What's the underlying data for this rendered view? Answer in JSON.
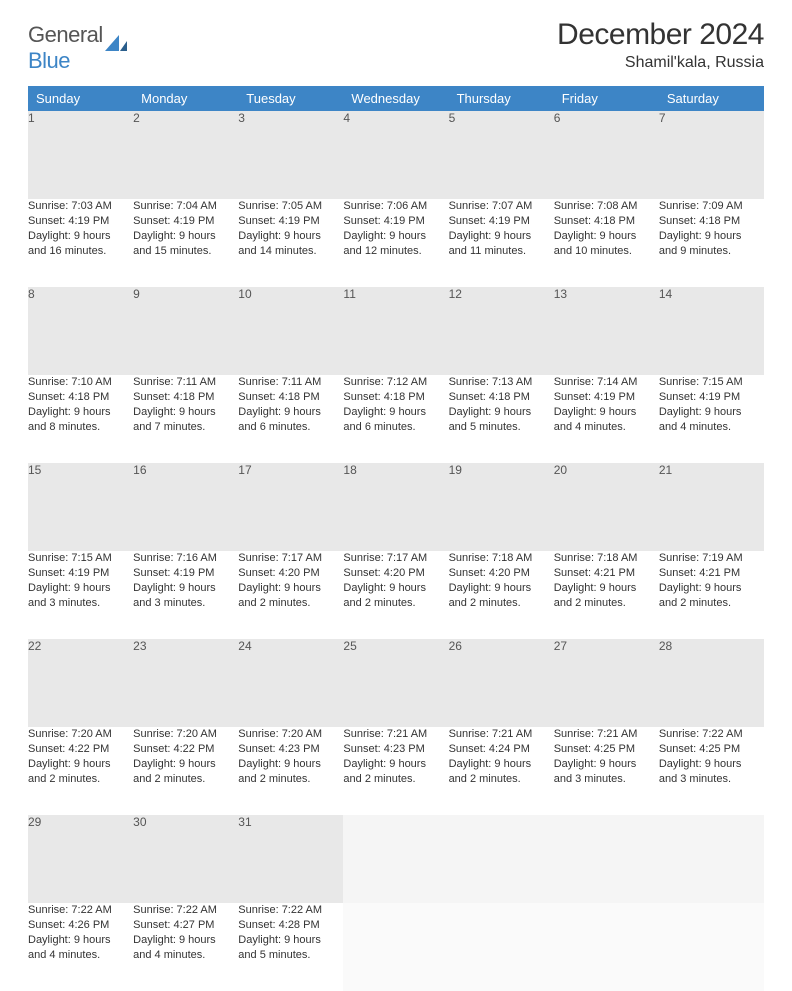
{
  "brand": {
    "name_general": "General",
    "name_blue": "Blue"
  },
  "title": "December 2024",
  "location": "Shamil'kala, Russia",
  "colors": {
    "header_bg": "#3d85c6",
    "header_text": "#ffffff",
    "daynum_bg": "#e8e8e8",
    "daynum_border_top": "#3d85c6",
    "body_text": "#333333"
  },
  "dayNames": [
    "Sunday",
    "Monday",
    "Tuesday",
    "Wednesday",
    "Thursday",
    "Friday",
    "Saturday"
  ],
  "weeks": [
    [
      {
        "num": "1",
        "sunrise": "Sunrise: 7:03 AM",
        "sunset": "Sunset: 4:19 PM",
        "daylight1": "Daylight: 9 hours",
        "daylight2": "and 16 minutes."
      },
      {
        "num": "2",
        "sunrise": "Sunrise: 7:04 AM",
        "sunset": "Sunset: 4:19 PM",
        "daylight1": "Daylight: 9 hours",
        "daylight2": "and 15 minutes."
      },
      {
        "num": "3",
        "sunrise": "Sunrise: 7:05 AM",
        "sunset": "Sunset: 4:19 PM",
        "daylight1": "Daylight: 9 hours",
        "daylight2": "and 14 minutes."
      },
      {
        "num": "4",
        "sunrise": "Sunrise: 7:06 AM",
        "sunset": "Sunset: 4:19 PM",
        "daylight1": "Daylight: 9 hours",
        "daylight2": "and 12 minutes."
      },
      {
        "num": "5",
        "sunrise": "Sunrise: 7:07 AM",
        "sunset": "Sunset: 4:19 PM",
        "daylight1": "Daylight: 9 hours",
        "daylight2": "and 11 minutes."
      },
      {
        "num": "6",
        "sunrise": "Sunrise: 7:08 AM",
        "sunset": "Sunset: 4:18 PM",
        "daylight1": "Daylight: 9 hours",
        "daylight2": "and 10 minutes."
      },
      {
        "num": "7",
        "sunrise": "Sunrise: 7:09 AM",
        "sunset": "Sunset: 4:18 PM",
        "daylight1": "Daylight: 9 hours",
        "daylight2": "and 9 minutes."
      }
    ],
    [
      {
        "num": "8",
        "sunrise": "Sunrise: 7:10 AM",
        "sunset": "Sunset: 4:18 PM",
        "daylight1": "Daylight: 9 hours",
        "daylight2": "and 8 minutes."
      },
      {
        "num": "9",
        "sunrise": "Sunrise: 7:11 AM",
        "sunset": "Sunset: 4:18 PM",
        "daylight1": "Daylight: 9 hours",
        "daylight2": "and 7 minutes."
      },
      {
        "num": "10",
        "sunrise": "Sunrise: 7:11 AM",
        "sunset": "Sunset: 4:18 PM",
        "daylight1": "Daylight: 9 hours",
        "daylight2": "and 6 minutes."
      },
      {
        "num": "11",
        "sunrise": "Sunrise: 7:12 AM",
        "sunset": "Sunset: 4:18 PM",
        "daylight1": "Daylight: 9 hours",
        "daylight2": "and 6 minutes."
      },
      {
        "num": "12",
        "sunrise": "Sunrise: 7:13 AM",
        "sunset": "Sunset: 4:18 PM",
        "daylight1": "Daylight: 9 hours",
        "daylight2": "and 5 minutes."
      },
      {
        "num": "13",
        "sunrise": "Sunrise: 7:14 AM",
        "sunset": "Sunset: 4:19 PM",
        "daylight1": "Daylight: 9 hours",
        "daylight2": "and 4 minutes."
      },
      {
        "num": "14",
        "sunrise": "Sunrise: 7:15 AM",
        "sunset": "Sunset: 4:19 PM",
        "daylight1": "Daylight: 9 hours",
        "daylight2": "and 4 minutes."
      }
    ],
    [
      {
        "num": "15",
        "sunrise": "Sunrise: 7:15 AM",
        "sunset": "Sunset: 4:19 PM",
        "daylight1": "Daylight: 9 hours",
        "daylight2": "and 3 minutes."
      },
      {
        "num": "16",
        "sunrise": "Sunrise: 7:16 AM",
        "sunset": "Sunset: 4:19 PM",
        "daylight1": "Daylight: 9 hours",
        "daylight2": "and 3 minutes."
      },
      {
        "num": "17",
        "sunrise": "Sunrise: 7:17 AM",
        "sunset": "Sunset: 4:20 PM",
        "daylight1": "Daylight: 9 hours",
        "daylight2": "and 2 minutes."
      },
      {
        "num": "18",
        "sunrise": "Sunrise: 7:17 AM",
        "sunset": "Sunset: 4:20 PM",
        "daylight1": "Daylight: 9 hours",
        "daylight2": "and 2 minutes."
      },
      {
        "num": "19",
        "sunrise": "Sunrise: 7:18 AM",
        "sunset": "Sunset: 4:20 PM",
        "daylight1": "Daylight: 9 hours",
        "daylight2": "and 2 minutes."
      },
      {
        "num": "20",
        "sunrise": "Sunrise: 7:18 AM",
        "sunset": "Sunset: 4:21 PM",
        "daylight1": "Daylight: 9 hours",
        "daylight2": "and 2 minutes."
      },
      {
        "num": "21",
        "sunrise": "Sunrise: 7:19 AM",
        "sunset": "Sunset: 4:21 PM",
        "daylight1": "Daylight: 9 hours",
        "daylight2": "and 2 minutes."
      }
    ],
    [
      {
        "num": "22",
        "sunrise": "Sunrise: 7:20 AM",
        "sunset": "Sunset: 4:22 PM",
        "daylight1": "Daylight: 9 hours",
        "daylight2": "and 2 minutes."
      },
      {
        "num": "23",
        "sunrise": "Sunrise: 7:20 AM",
        "sunset": "Sunset: 4:22 PM",
        "daylight1": "Daylight: 9 hours",
        "daylight2": "and 2 minutes."
      },
      {
        "num": "24",
        "sunrise": "Sunrise: 7:20 AM",
        "sunset": "Sunset: 4:23 PM",
        "daylight1": "Daylight: 9 hours",
        "daylight2": "and 2 minutes."
      },
      {
        "num": "25",
        "sunrise": "Sunrise: 7:21 AM",
        "sunset": "Sunset: 4:23 PM",
        "daylight1": "Daylight: 9 hours",
        "daylight2": "and 2 minutes."
      },
      {
        "num": "26",
        "sunrise": "Sunrise: 7:21 AM",
        "sunset": "Sunset: 4:24 PM",
        "daylight1": "Daylight: 9 hours",
        "daylight2": "and 2 minutes."
      },
      {
        "num": "27",
        "sunrise": "Sunrise: 7:21 AM",
        "sunset": "Sunset: 4:25 PM",
        "daylight1": "Daylight: 9 hours",
        "daylight2": "and 3 minutes."
      },
      {
        "num": "28",
        "sunrise": "Sunrise: 7:22 AM",
        "sunset": "Sunset: 4:25 PM",
        "daylight1": "Daylight: 9 hours",
        "daylight2": "and 3 minutes."
      }
    ],
    [
      {
        "num": "29",
        "sunrise": "Sunrise: 7:22 AM",
        "sunset": "Sunset: 4:26 PM",
        "daylight1": "Daylight: 9 hours",
        "daylight2": "and 4 minutes."
      },
      {
        "num": "30",
        "sunrise": "Sunrise: 7:22 AM",
        "sunset": "Sunset: 4:27 PM",
        "daylight1": "Daylight: 9 hours",
        "daylight2": "and 4 minutes."
      },
      {
        "num": "31",
        "sunrise": "Sunrise: 7:22 AM",
        "sunset": "Sunset: 4:28 PM",
        "daylight1": "Daylight: 9 hours",
        "daylight2": "and 5 minutes."
      },
      {
        "empty": true
      },
      {
        "empty": true
      },
      {
        "empty": true
      },
      {
        "empty": true
      }
    ]
  ]
}
